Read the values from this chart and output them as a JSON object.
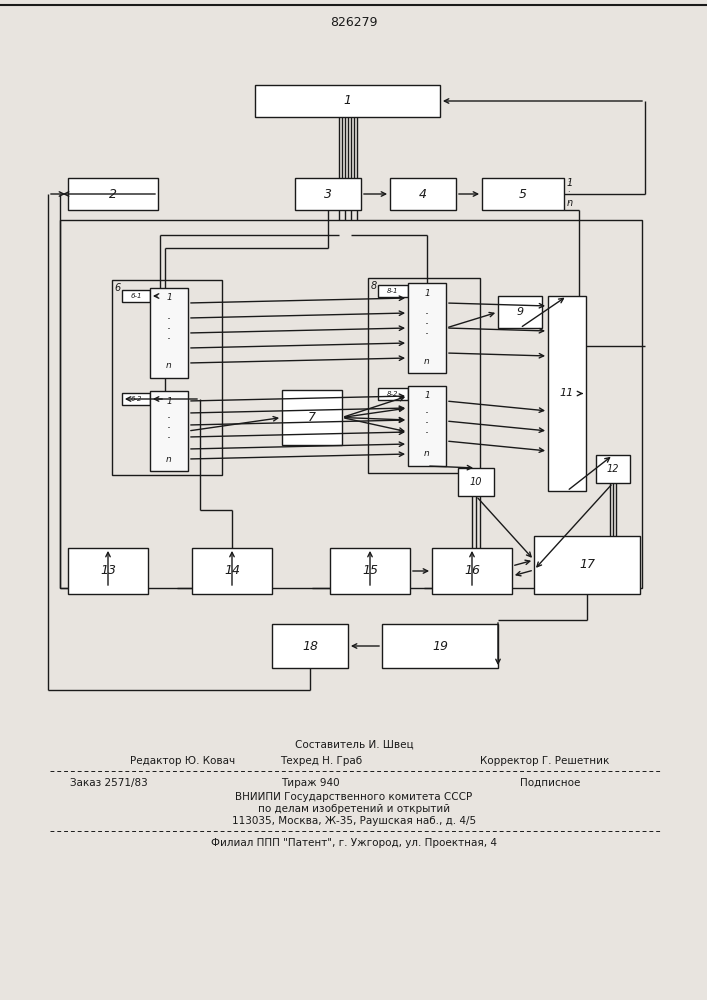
{
  "title": "826279",
  "background": "#e8e4df",
  "line_color": "#1a1a1a",
  "box_fill": "#ffffff",
  "text_color": "#1a1a1a",
  "footer": {
    "line1_center": "Составитель И. Швец",
    "line2_left": "Редактор Ю. Ковач",
    "line2_center": "Техред Н. Граб",
    "line2_right": "Корректор Г. Решетник",
    "line3_left": "Заказ 2571/83",
    "line3_center": "Тираж 940",
    "line3_right": "Подписное",
    "line4": "ВНИИПИ Государственного комитета СССР",
    "line5": "по делам изобретений и открытий",
    "line6": "113035, Москва, Ж-35, Раушская наб., д. 4/5",
    "line7": "Филиал ППП \"Патент\", г. Ужгород, ул. Проектная, 4"
  }
}
